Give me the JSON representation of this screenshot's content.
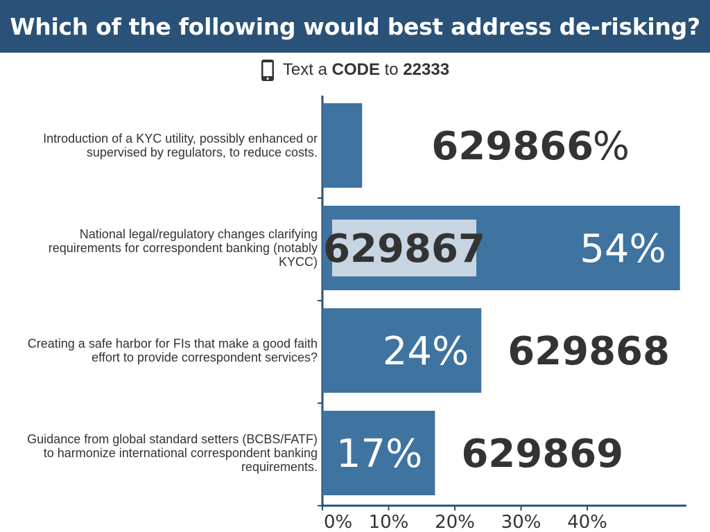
{
  "header": {
    "title": "Which of the following would best address de-risking?"
  },
  "instruction": {
    "phone_icon": "mobile-phone-icon",
    "prefix": "Text a ",
    "code_word": "CODE",
    "middle": " to ",
    "number": "22333"
  },
  "colors": {
    "header_bg": "#2a5278",
    "bar": "#3f73a0",
    "highlight": "#c7d5e2",
    "dark_text": "#333333",
    "light_text": "#ffffff"
  },
  "chart_data": {
    "type": "bar",
    "orientation": "horizontal",
    "categories": [
      "Introduction of a KYC utility, possibly enhanced or supervised by regulators, to reduce costs.",
      "National legal/regulatory changes clarifying requirements for correspondent banking (notably KYCC)",
      "Creating a safe harbor for FIs that make a good faith effort to provide correspondent services?",
      "Guidance from global standard setters (BCBS/FATF) to harmonize international correspondent banking requirements."
    ],
    "values": [
      6,
      54,
      24,
      17
    ],
    "value_labels": [
      "6%",
      "54%",
      "24%",
      "17%"
    ],
    "codes": [
      "629866",
      "629867",
      "629868",
      "629869"
    ],
    "highlighted_index": 1,
    "x_ticks": [
      "0%",
      "10%",
      "20%",
      "30%",
      "40%"
    ],
    "xlim": [
      0,
      55
    ],
    "grid": false
  }
}
